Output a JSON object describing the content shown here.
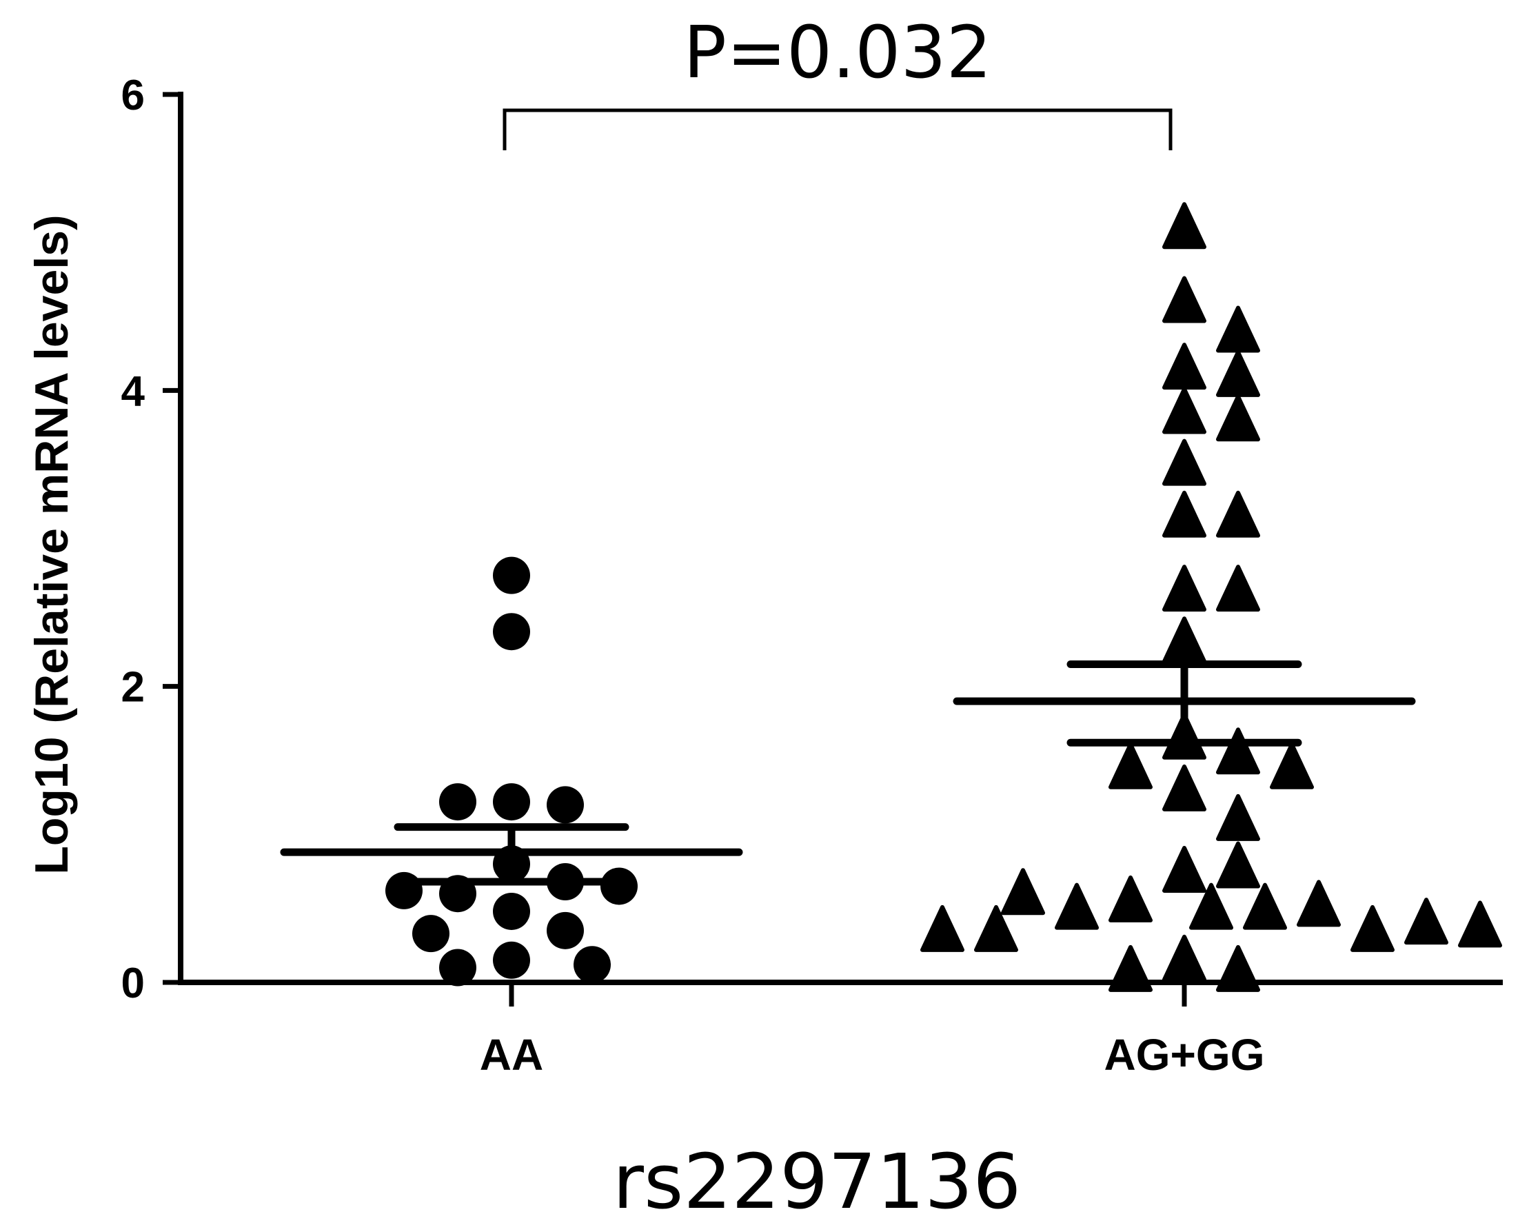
{
  "chart_data": {
    "type": "scatter",
    "subtype": "dot-plot (mean ± SEM)",
    "ylabel": "Log10 (Relative mRNA levels)",
    "xlabel": "rs2297136",
    "ylim": [
      0,
      6
    ],
    "yticks": [
      0,
      2,
      4,
      6
    ],
    "ytick_labels": [
      "0",
      "2",
      "4",
      "6"
    ],
    "categories": [
      "AA",
      "AG+GG"
    ],
    "annotation": "P=0.032",
    "series": [
      {
        "category": "AA",
        "marker": "circle",
        "values": [
          2.75,
          2.37,
          1.22,
          1.2,
          1.22,
          0.8,
          0.68,
          0.6,
          0.65,
          0.62,
          0.48,
          0.35,
          0.33,
          0.15,
          0.12,
          0.1
        ],
        "mean": 0.88,
        "sem_upper": 1.05,
        "sem_lower": 0.68
      },
      {
        "category": "AG+GG",
        "marker": "triangle",
        "values": [
          5.1,
          4.6,
          4.4,
          4.15,
          4.1,
          3.85,
          3.8,
          3.5,
          3.15,
          3.15,
          2.65,
          2.65,
          2.3,
          1.65,
          1.55,
          1.45,
          1.45,
          1.3,
          1.1,
          0.75,
          0.78,
          0.55,
          0.5,
          0.5,
          0.5,
          0.52,
          0.6,
          0.35,
          0.35,
          0.4,
          0.35,
          0.38,
          0.15,
          0.08,
          0.08
        ],
        "mean": 1.9,
        "sem_upper": 2.15,
        "sem_lower": 1.62
      }
    ],
    "marker_color": "#000000"
  }
}
